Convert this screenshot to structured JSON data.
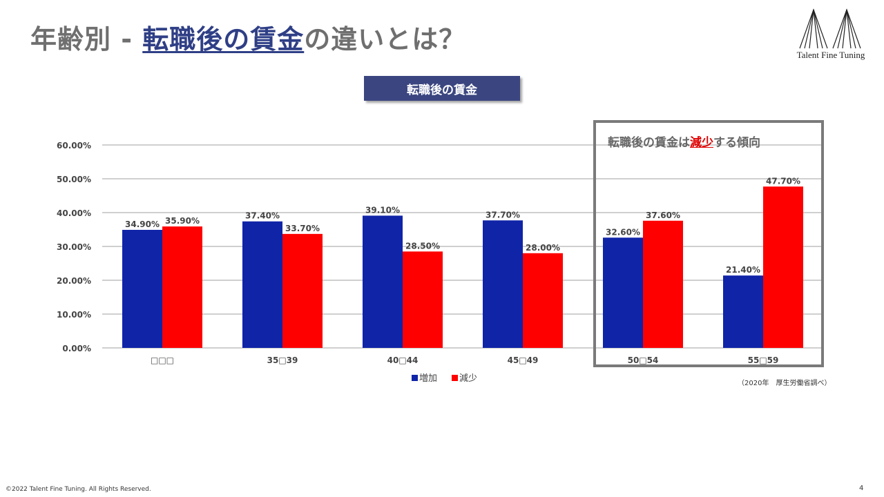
{
  "slide": {
    "title_prefix": "年齢別 - ",
    "title_highlight": "転職後の賃金",
    "title_suffix": "の違いとは？",
    "logo_text": "Talent Fine Tuning",
    "chart_heading": "転職後の賃金",
    "annotation_prefix": "転職後の賃金は",
    "annotation_highlight": "減少",
    "annotation_suffix": "する傾向",
    "source": "（2020年　厚生労働省調べ）",
    "footer": "©2022 Talent Fine Tuning. All Rights Reserved.",
    "page_number": "4"
  },
  "colors": {
    "increase": "#1024a8",
    "decrease": "#ff0000",
    "title_highlight": "#2f3f86",
    "heading_bg": "#3b4680"
  },
  "chart_data": {
    "type": "bar",
    "categories": [
      "□□□",
      "35□39",
      "40□44",
      "45□49",
      "50□54",
      "55□59"
    ],
    "series": [
      {
        "name": "増加",
        "values": [
          34.9,
          37.4,
          39.1,
          37.7,
          32.6,
          21.4
        ]
      },
      {
        "name": "減少",
        "values": [
          35.9,
          33.7,
          28.5,
          28.0,
          37.6,
          47.7
        ]
      }
    ],
    "data_labels": [
      [
        "34.90%",
        "37.40%",
        "39.10%",
        "37.70%",
        "32.60%",
        "21.40%"
      ],
      [
        "35.90%",
        "33.70%",
        "28.50%",
        "28.00%",
        "37.60%",
        "47.70%"
      ]
    ],
    "yticks": [
      "0.00%",
      "10.00%",
      "20.00%",
      "30.00%",
      "40.00%",
      "50.00%",
      "60.00%"
    ],
    "ylim": [
      0,
      60
    ],
    "grid": true,
    "legend_position": "bottom",
    "highlighted_categories": [
      "50□54",
      "55□59"
    ]
  }
}
